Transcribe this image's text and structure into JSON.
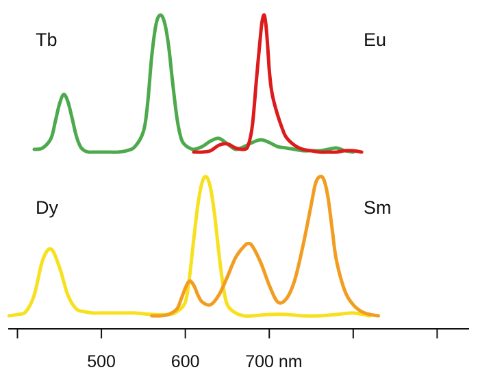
{
  "chart_data": {
    "type": "line",
    "title": "",
    "xlabel": "",
    "ylabel": "",
    "x_unit": "nm",
    "x_ticks": [
      {
        "value": 400,
        "label": ""
      },
      {
        "value": 500,
        "label": "500"
      },
      {
        "value": 600,
        "label": "600"
      },
      {
        "value": 700,
        "label": "700 nm"
      },
      {
        "value": 800,
        "label": ""
      },
      {
        "value": 900,
        "label": ""
      }
    ],
    "xlim": [
      389,
      938
    ],
    "grid": false,
    "legend": "none",
    "panels": [
      {
        "id": "top",
        "labels": [
          {
            "text": "Tb",
            "series": 0,
            "placement": "top-left"
          },
          {
            "text": "Eu",
            "series": 1,
            "placement": "top-right"
          }
        ],
        "series": [
          {
            "name": "Tb",
            "color": "#4caa4c",
            "x": [
              420,
              430,
              440,
              445,
              450,
              455,
              460,
              465,
              470,
              475,
              480,
              485,
              490,
              500,
              510,
              520,
              530,
              540,
              550,
              555,
              560,
              565,
              570,
              575,
              580,
              585,
              590,
              595,
              600,
              605,
              610,
              620,
              630,
              640,
              650,
              660,
              670,
              680,
              690,
              700,
              710,
              720,
              730,
              740,
              750,
              760,
              770,
              780,
              790,
              800
            ],
            "y": [
              0.02,
              0.03,
              0.1,
              0.22,
              0.35,
              0.42,
              0.37,
              0.25,
              0.12,
              0.04,
              0.01,
              0.0,
              0.0,
              0.0,
              0.0,
              0.0,
              0.01,
              0.04,
              0.15,
              0.35,
              0.7,
              0.93,
              1.0,
              0.95,
              0.78,
              0.5,
              0.25,
              0.1,
              0.05,
              0.03,
              0.02,
              0.04,
              0.08,
              0.1,
              0.06,
              0.02,
              0.04,
              0.07,
              0.09,
              0.07,
              0.04,
              0.03,
              0.02,
              0.01,
              0.01,
              0.01,
              0.02,
              0.03,
              0.01,
              0.0
            ]
          },
          {
            "name": "Eu",
            "color": "#dc1c1c",
            "x": [
              610,
              620,
              630,
              640,
              650,
              660,
              670,
              675,
              680,
              685,
              690,
              692,
              694,
              696,
              698,
              700,
              702,
              705,
              710,
              715,
              720,
              730,
              740,
              750,
              760,
              770,
              780,
              790,
              800,
              810
            ],
            "y": [
              0.0,
              0.0,
              0.01,
              0.05,
              0.06,
              0.03,
              0.02,
              0.05,
              0.2,
              0.55,
              0.88,
              0.97,
              1.0,
              0.93,
              0.78,
              0.6,
              0.48,
              0.38,
              0.27,
              0.18,
              0.11,
              0.05,
              0.02,
              0.01,
              0.0,
              0.0,
              0.0,
              0.01,
              0.01,
              0.0
            ]
          }
        ]
      },
      {
        "id": "bottom",
        "labels": [
          {
            "text": "Dy",
            "series": 0,
            "placement": "top-left"
          },
          {
            "text": "Sm",
            "series": 1,
            "placement": "top-right"
          }
        ],
        "series": [
          {
            "name": "Dy",
            "color": "#f7e11e",
            "x": [
              390,
              400,
              410,
              420,
              430,
              440,
              450,
              460,
              470,
              480,
              490,
              500,
              520,
              540,
              560,
              580,
              590,
              600,
              605,
              610,
              615,
              620,
              625,
              630,
              635,
              640,
              645,
              650,
              660,
              670,
              680,
              700,
              720,
              740,
              760,
              780,
              800,
              820
            ],
            "y": [
              0.0,
              0.01,
              0.03,
              0.15,
              0.4,
              0.48,
              0.35,
              0.15,
              0.05,
              0.03,
              0.02,
              0.02,
              0.02,
              0.02,
              0.01,
              0.01,
              0.03,
              0.1,
              0.28,
              0.55,
              0.8,
              0.96,
              1.0,
              0.92,
              0.72,
              0.45,
              0.22,
              0.08,
              0.02,
              0.0,
              0.0,
              0.01,
              0.01,
              0.0,
              0.0,
              0.01,
              0.02,
              0.0
            ]
          },
          {
            "name": "Sm",
            "color": "#f29d22",
            "x": [
              560,
              570,
              580,
              590,
              595,
              600,
              605,
              610,
              615,
              620,
              630,
              640,
              650,
              660,
              670,
              675,
              680,
              690,
              700,
              710,
              720,
              730,
              740,
              750,
              755,
              760,
              765,
              770,
              775,
              780,
              790,
              800,
              810,
              820,
              830
            ],
            "y": [
              0.0,
              0.0,
              0.01,
              0.05,
              0.12,
              0.2,
              0.25,
              0.22,
              0.15,
              0.1,
              0.08,
              0.15,
              0.28,
              0.42,
              0.5,
              0.52,
              0.5,
              0.38,
              0.22,
              0.1,
              0.12,
              0.25,
              0.5,
              0.8,
              0.95,
              1.0,
              0.98,
              0.85,
              0.62,
              0.4,
              0.18,
              0.08,
              0.03,
              0.01,
              0.0
            ]
          }
        ]
      }
    ]
  }
}
